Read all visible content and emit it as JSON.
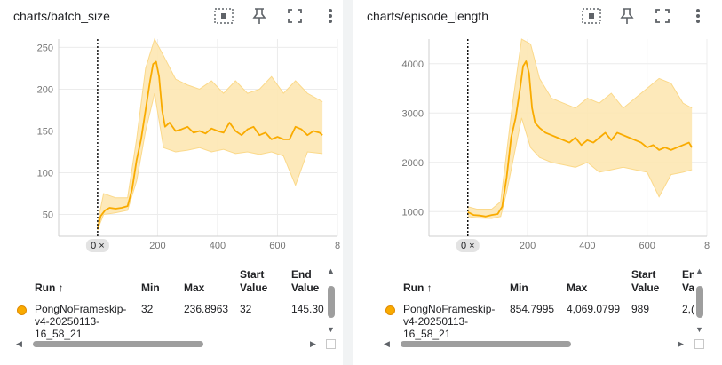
{
  "accent_color": "#f9ab00",
  "cards": [
    {
      "title": "charts/batch_size",
      "axis_zero_chip": "0 ×",
      "table": {
        "headers": [
          "Run ↑",
          "Min",
          "Max",
          "Start Value",
          "End Value"
        ],
        "header_lines": [
          [
            "Run ↑"
          ],
          [
            "Min"
          ],
          [
            "Max"
          ],
          [
            "Start",
            "Value"
          ],
          [
            "End",
            "Value"
          ]
        ],
        "row": {
          "run_lines": [
            "PongNoFrameskip-",
            "v4-20250113-",
            "16_58_21"
          ],
          "min": "32",
          "max": "236.8963",
          "start": "32",
          "end": "145.30"
        }
      }
    },
    {
      "title": "charts/episode_length",
      "axis_zero_chip": "0 ×",
      "table": {
        "headers": [
          "Run ↑",
          "Min",
          "Max",
          "Start Value",
          "End Value"
        ],
        "header_lines": [
          [
            "Run ↑"
          ],
          [
            "Min"
          ],
          [
            "Max"
          ],
          [
            "Start",
            "Value"
          ],
          [
            "En",
            "Va"
          ]
        ],
        "row": {
          "run_lines": [
            "PongNoFrameskip-",
            "v4-20250113-",
            "16_58_21"
          ],
          "min": "854.7995",
          "max": "4,069.0799",
          "start": "989",
          "end": "2,("
        }
      }
    }
  ],
  "chart_data": [
    {
      "type": "line",
      "title": "charts/batch_size",
      "x_ticks": [
        "200",
        "400",
        "600",
        "8"
      ],
      "y_ticks": [
        "50",
        "100",
        "150",
        "200",
        "250"
      ],
      "xlim": [
        -130,
        800
      ],
      "ylim": [
        24,
        260
      ],
      "marker_x": 0,
      "series": [
        {
          "smoothed": [
            [
              0,
              32
            ],
            [
              10,
              48
            ],
            [
              25,
              55
            ],
            [
              40,
              58
            ],
            [
              60,
              57
            ],
            [
              80,
              58
            ],
            [
              100,
              60
            ],
            [
              115,
              80
            ],
            [
              130,
              115
            ],
            [
              145,
              140
            ],
            [
              160,
              175
            ],
            [
              175,
              210
            ],
            [
              185,
              230
            ],
            [
              195,
              233
            ],
            [
              205,
              215
            ],
            [
              215,
              175
            ],
            [
              225,
              155
            ],
            [
              240,
              160
            ],
            [
              260,
              150
            ],
            [
              280,
              152
            ],
            [
              300,
              155
            ],
            [
              320,
              148
            ],
            [
              340,
              150
            ],
            [
              360,
              147
            ],
            [
              380,
              153
            ],
            [
              400,
              150
            ],
            [
              420,
              148
            ],
            [
              440,
              160
            ],
            [
              460,
              150
            ],
            [
              480,
              145
            ],
            [
              500,
              152
            ],
            [
              520,
              155
            ],
            [
              540,
              145
            ],
            [
              560,
              148
            ],
            [
              580,
              140
            ],
            [
              600,
              143
            ],
            [
              620,
              140
            ],
            [
              640,
              140
            ],
            [
              660,
              155
            ],
            [
              680,
              152
            ],
            [
              700,
              145
            ],
            [
              720,
              150
            ],
            [
              740,
              148
            ],
            [
              750,
              145
            ]
          ],
          "raw_lower": [
            [
              0,
              32
            ],
            [
              20,
              50
            ],
            [
              60,
              52
            ],
            [
              100,
              55
            ],
            [
              130,
              90
            ],
            [
              160,
              150
            ],
            [
              190,
              195
            ],
            [
              220,
              130
            ],
            [
              260,
              125
            ],
            [
              300,
              127
            ],
            [
              340,
              130
            ],
            [
              380,
              125
            ],
            [
              420,
              128
            ],
            [
              460,
              123
            ],
            [
              500,
              125
            ],
            [
              540,
              122
            ],
            [
              580,
              125
            ],
            [
              620,
              120
            ],
            [
              660,
              85
            ],
            [
              700,
              125
            ],
            [
              750,
              123
            ]
          ],
          "raw_upper": [
            [
              0,
              40
            ],
            [
              20,
              75
            ],
            [
              60,
              70
            ],
            [
              100,
              70
            ],
            [
              130,
              140
            ],
            [
              160,
              225
            ],
            [
              190,
              260
            ],
            [
              220,
              240
            ],
            [
              260,
              212
            ],
            [
              300,
              205
            ],
            [
              340,
              200
            ],
            [
              380,
              210
            ],
            [
              420,
              195
            ],
            [
              460,
              210
            ],
            [
              500,
              195
            ],
            [
              540,
              200
            ],
            [
              580,
              215
            ],
            [
              620,
              195
            ],
            [
              660,
              210
            ],
            [
              700,
              195
            ],
            [
              750,
              185
            ]
          ]
        }
      ]
    },
    {
      "type": "line",
      "title": "charts/episode_length",
      "x_ticks": [
        "200",
        "400",
        "600",
        "8"
      ],
      "y_ticks": [
        "1000",
        "2000",
        "3000",
        "4000"
      ],
      "xlim": [
        -130,
        800
      ],
      "ylim": [
        500,
        4500
      ],
      "marker_x": 0,
      "series": [
        {
          "smoothed": [
            [
              0,
              989
            ],
            [
              20,
              930
            ],
            [
              40,
              920
            ],
            [
              60,
              900
            ],
            [
              80,
              930
            ],
            [
              100,
              950
            ],
            [
              115,
              1100
            ],
            [
              130,
              1700
            ],
            [
              145,
              2500
            ],
            [
              160,
              2900
            ],
            [
              175,
              3500
            ],
            [
              185,
              3950
            ],
            [
              195,
              4050
            ],
            [
              205,
              3800
            ],
            [
              215,
              3100
            ],
            [
              225,
              2800
            ],
            [
              240,
              2700
            ],
            [
              260,
              2600
            ],
            [
              280,
              2550
            ],
            [
              300,
              2500
            ],
            [
              320,
              2450
            ],
            [
              340,
              2400
            ],
            [
              360,
              2500
            ],
            [
              380,
              2350
            ],
            [
              400,
              2450
            ],
            [
              420,
              2400
            ],
            [
              440,
              2500
            ],
            [
              460,
              2600
            ],
            [
              480,
              2450
            ],
            [
              500,
              2600
            ],
            [
              520,
              2550
            ],
            [
              540,
              2500
            ],
            [
              560,
              2450
            ],
            [
              580,
              2400
            ],
            [
              600,
              2300
            ],
            [
              620,
              2350
            ],
            [
              640,
              2250
            ],
            [
              660,
              2300
            ],
            [
              680,
              2250
            ],
            [
              700,
              2300
            ],
            [
              720,
              2350
            ],
            [
              740,
              2400
            ],
            [
              750,
              2300
            ]
          ],
          "raw_lower": [
            [
              0,
              900
            ],
            [
              30,
              870
            ],
            [
              80,
              860
            ],
            [
              110,
              900
            ],
            [
              130,
              1400
            ],
            [
              150,
              2000
            ],
            [
              180,
              2900
            ],
            [
              210,
              2300
            ],
            [
              240,
              2100
            ],
            [
              280,
              2000
            ],
            [
              320,
              1950
            ],
            [
              360,
              1900
            ],
            [
              400,
              2000
            ],
            [
              440,
              1800
            ],
            [
              480,
              1850
            ],
            [
              520,
              1900
            ],
            [
              560,
              1850
            ],
            [
              600,
              1800
            ],
            [
              640,
              1300
            ],
            [
              680,
              1750
            ],
            [
              720,
              1800
            ],
            [
              750,
              1850
            ]
          ],
          "raw_upper": [
            [
              0,
              1100
            ],
            [
              30,
              1050
            ],
            [
              80,
              1050
            ],
            [
              110,
              1200
            ],
            [
              130,
              2200
            ],
            [
              150,
              3200
            ],
            [
              180,
              4500
            ],
            [
              210,
              4400
            ],
            [
              240,
              3700
            ],
            [
              280,
              3300
            ],
            [
              320,
              3200
            ],
            [
              360,
              3100
            ],
            [
              400,
              3300
            ],
            [
              440,
              3200
            ],
            [
              480,
              3400
            ],
            [
              520,
              3100
            ],
            [
              560,
              3300
            ],
            [
              600,
              3500
            ],
            [
              640,
              3700
            ],
            [
              680,
              3600
            ],
            [
              720,
              3200
            ],
            [
              750,
              3100
            ]
          ]
        }
      ]
    }
  ]
}
